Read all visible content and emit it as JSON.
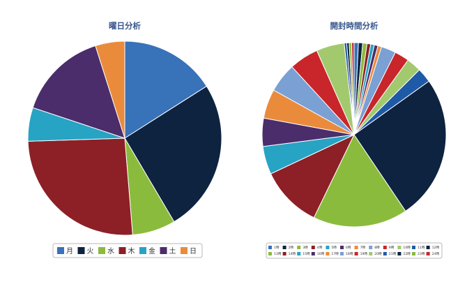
{
  "chart_data": [
    {
      "type": "pie",
      "title": "曜日分析",
      "categories": [
        "月",
        "火",
        "水",
        "木",
        "金",
        "土",
        "日"
      ],
      "values": [
        16.0,
        25.5,
        7.2,
        25.8,
        5.6,
        15.0,
        4.9
      ],
      "colors": [
        "#3872b8",
        "#0d2340",
        "#8bbb3c",
        "#8c2026",
        "#27a3c4",
        "#4b2d6b",
        "#ea8b3c"
      ],
      "legend": "bottom"
    },
    {
      "type": "pie",
      "title": "開封時間分析",
      "categories": [
        "1時",
        "2時",
        "3時",
        "4時",
        "5時",
        "6時",
        "7時",
        "8時",
        "9時",
        "10時",
        "11時",
        "12時",
        "13時",
        "14時",
        "15時",
        "16時",
        "17時",
        "18時",
        "19時",
        "20時",
        "21時",
        "22時",
        "23時",
        "24時"
      ],
      "values": [
        0.7,
        0.7,
        0.7,
        0.6,
        0.6,
        0.6,
        0.6,
        2.4,
        2.4,
        2.4,
        2.4,
        23.7,
        15.5,
        10.1,
        4.6,
        4.6,
        4.8,
        4.8,
        4.8,
        4.6,
        0.4,
        0.4,
        0.4,
        0.4
      ],
      "colors": [
        "#3872b8",
        "#0d2340",
        "#8bbb3c",
        "#8c2026",
        "#27a3c4",
        "#4b2d6b",
        "#ea8b3c",
        "#7aa0d4",
        "#c8262b",
        "#a3c96f",
        "#1f5aa6",
        "#0d2340",
        "#8bbb3c",
        "#8c2026",
        "#27a3c4",
        "#4b2d6b",
        "#ea8b3c",
        "#7aa0d4",
        "#c8262b",
        "#a3c96f",
        "#1f5aa6",
        "#0d2340",
        "#8bbb3c",
        "#c8262b"
      ],
      "legend": "bottom"
    }
  ]
}
